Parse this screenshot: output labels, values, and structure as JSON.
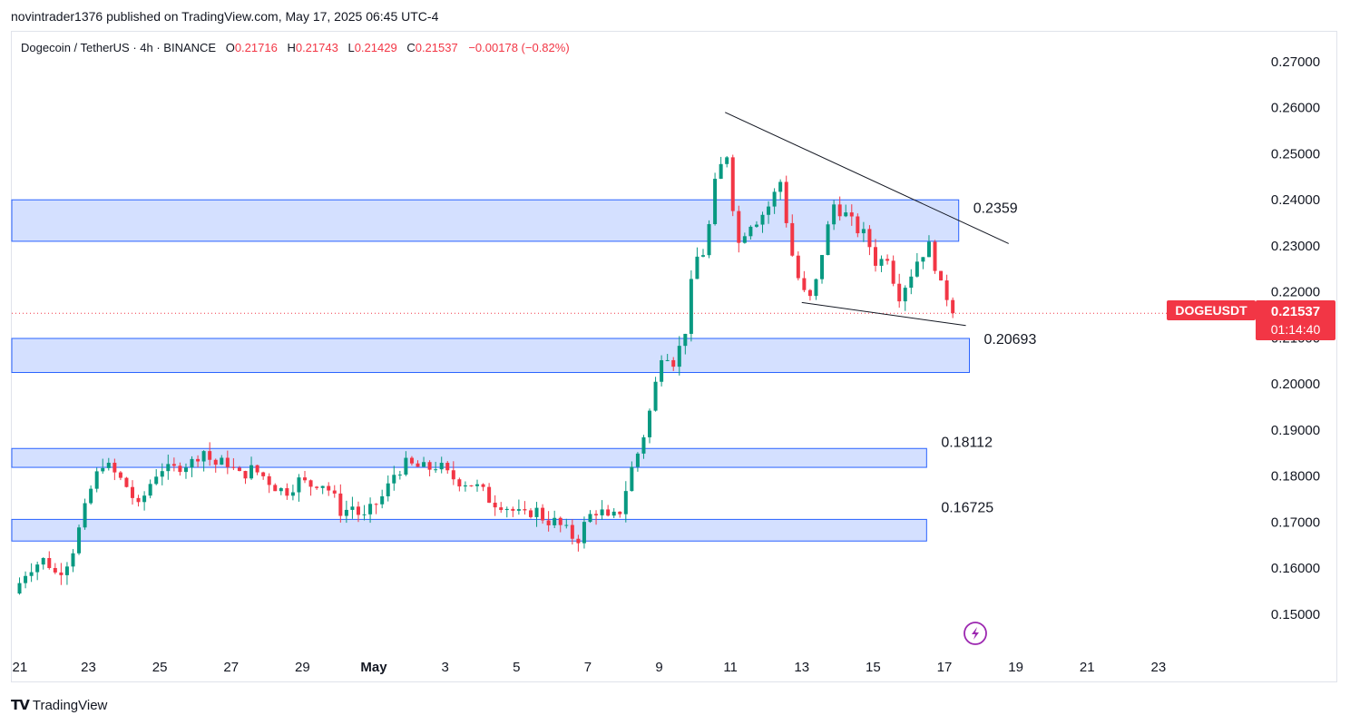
{
  "header": {
    "published": "novintrader1376 published on TradingView.com, May 17, 2025 06:45 UTC-4"
  },
  "legend": {
    "symbol": "Dogecoin / TetherUS · 4h · BINANCE",
    "o_label": "O",
    "o_value": "0.21716",
    "h_label": "H",
    "h_value": "0.21743",
    "l_label": "L",
    "l_value": "0.21429",
    "c_label": "C",
    "c_value": "0.21537",
    "change": "−0.00178 (−0.82%)"
  },
  "price_tag": {
    "symbol": "DOGEUSDT",
    "price": "0.21537",
    "countdown": "01:14:40",
    "color": "#f23645"
  },
  "branding": {
    "logo_text": "TradingView"
  },
  "colors": {
    "up": "#089981",
    "down": "#f23645",
    "zone_fill": "#d4e0ff",
    "zone_border": "#2962ff",
    "trendline": "#131722"
  },
  "chart_data": {
    "type": "candlestick",
    "interval": "4h",
    "y_axis": {
      "ticks": [
        "0.27000",
        "0.26000",
        "0.25000",
        "0.24000",
        "0.23000",
        "0.22000",
        "0.21000",
        "0.20000",
        "0.19000",
        "0.18000",
        "0.17000",
        "0.16000",
        "0.15000"
      ],
      "tick_values": [
        0.27,
        0.26,
        0.25,
        0.24,
        0.23,
        0.22,
        0.21,
        0.2,
        0.19,
        0.18,
        0.17,
        0.16,
        0.15
      ],
      "range": [
        0.1425,
        0.2765
      ]
    },
    "x_axis": {
      "ticks": [
        "21",
        "23",
        "25",
        "27",
        "29",
        "May",
        "3",
        "5",
        "7",
        "9",
        "11",
        "13",
        "15",
        "17",
        "19",
        "21",
        "23"
      ],
      "tick_days": [
        21,
        23,
        25,
        27,
        29,
        31,
        33,
        35,
        37,
        39,
        41,
        43,
        45,
        47,
        49,
        51,
        53
      ],
      "range_days": [
        20.85,
        55.7
      ]
    },
    "series_close_path": [
      [
        20.9,
        0.1545
      ],
      [
        21.3,
        0.16
      ],
      [
        21.8,
        0.162
      ],
      [
        22.1,
        0.1585
      ],
      [
        22.5,
        0.1625
      ],
      [
        22.8,
        0.17
      ],
      [
        23.1,
        0.178
      ],
      [
        23.4,
        0.183
      ],
      [
        23.8,
        0.18
      ],
      [
        24.1,
        0.1775
      ],
      [
        24.4,
        0.173
      ],
      [
        24.7,
        0.178
      ],
      [
        25.0,
        0.182
      ],
      [
        25.3,
        0.181
      ],
      [
        25.6,
        0.1825
      ],
      [
        25.9,
        0.183
      ],
      [
        26.2,
        0.186
      ],
      [
        26.5,
        0.1825
      ],
      [
        26.9,
        0.183
      ],
      [
        27.2,
        0.18
      ],
      [
        27.6,
        0.1815
      ],
      [
        27.9,
        0.18
      ],
      [
        28.2,
        0.178
      ],
      [
        28.5,
        0.1765
      ],
      [
        28.9,
        0.179
      ],
      [
        29.2,
        0.178
      ],
      [
        29.5,
        0.179
      ],
      [
        29.8,
        0.1765
      ],
      [
        30.1,
        0.172
      ],
      [
        30.4,
        0.1735
      ],
      [
        30.7,
        0.1705
      ],
      [
        31.0,
        0.1735
      ],
      [
        31.3,
        0.176
      ],
      [
        31.6,
        0.181
      ],
      [
        31.9,
        0.1825
      ],
      [
        32.2,
        0.182
      ],
      [
        32.5,
        0.1815
      ],
      [
        32.8,
        0.1825
      ],
      [
        33.1,
        0.18
      ],
      [
        33.4,
        0.179
      ],
      [
        33.7,
        0.1785
      ],
      [
        34.0,
        0.177
      ],
      [
        34.3,
        0.1745
      ],
      [
        34.6,
        0.174
      ],
      [
        34.9,
        0.1725
      ],
      [
        35.2,
        0.171
      ],
      [
        35.5,
        0.173
      ],
      [
        35.8,
        0.1705
      ],
      [
        36.1,
        0.17
      ],
      [
        36.4,
        0.168
      ],
      [
        36.7,
        0.166
      ],
      [
        37.0,
        0.171
      ],
      [
        37.3,
        0.173
      ],
      [
        37.6,
        0.17
      ],
      [
        37.9,
        0.1725
      ],
      [
        38.2,
        0.181
      ],
      [
        38.5,
        0.187
      ],
      [
        38.8,
        0.196
      ],
      [
        39.1,
        0.208
      ],
      [
        39.4,
        0.205
      ],
      [
        39.7,
        0.21
      ],
      [
        40.0,
        0.227
      ],
      [
        40.3,
        0.229
      ],
      [
        40.6,
        0.245
      ],
      [
        40.9,
        0.25
      ],
      [
        41.2,
        0.23
      ],
      [
        41.5,
        0.235
      ],
      [
        41.8,
        0.236
      ],
      [
        42.1,
        0.239
      ],
      [
        42.4,
        0.244
      ],
      [
        42.7,
        0.229
      ],
      [
        43.0,
        0.22
      ],
      [
        43.3,
        0.218
      ],
      [
        43.6,
        0.23
      ],
      [
        43.9,
        0.239
      ],
      [
        44.2,
        0.237
      ],
      [
        44.5,
        0.234
      ],
      [
        44.8,
        0.232
      ],
      [
        45.1,
        0.226
      ],
      [
        45.4,
        0.228
      ],
      [
        45.7,
        0.219
      ],
      [
        46.0,
        0.223
      ],
      [
        46.3,
        0.228
      ],
      [
        46.6,
        0.23
      ],
      [
        46.9,
        0.221
      ],
      [
        47.2,
        0.2175
      ],
      [
        47.3,
        0.2154
      ]
    ],
    "zones": [
      {
        "top": 0.24,
        "bottom": 0.231,
        "label": "0.2359",
        "end_day": 47.4
      },
      {
        "top": 0.2099,
        "bottom": 0.2025,
        "label": "0.20693",
        "end_day": 47.7
      },
      {
        "top": 0.186,
        "bottom": 0.1819,
        "label": "0.18112",
        "end_day": 46.5
      },
      {
        "top": 0.1706,
        "bottom": 0.1659,
        "label": "0.16725",
        "end_day": 46.5
      }
    ],
    "trendlines": [
      {
        "name": "upper",
        "from": [
          40.85,
          0.259
        ],
        "to": [
          48.8,
          0.2305
        ]
      },
      {
        "name": "lower",
        "from": [
          43.0,
          0.2177
        ],
        "to": [
          47.6,
          0.2127
        ]
      }
    ],
    "last_price": 0.21537
  }
}
